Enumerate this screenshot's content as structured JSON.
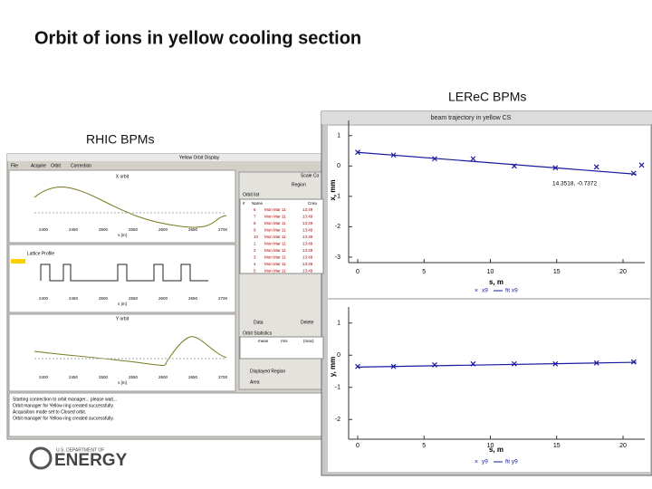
{
  "slide": {
    "title": "Orbit of ions in yellow cooling section",
    "lerec_label": "LEReC BPMs",
    "rhic_label": "RHIC BPMs"
  },
  "rhic_window": {
    "title": "Yellow Orbit Display",
    "menu": [
      "File",
      "Acquire",
      "Orbit",
      "Correction"
    ],
    "plot_titles": [
      "X orbit",
      "Lattice Profile",
      "Y orbit"
    ],
    "s_ticks": [
      "2400",
      "2450",
      "2500",
      "2550",
      "2600",
      "2650",
      "2700"
    ],
    "s_label": "s [m]",
    "side_labels": [
      "Scale Co",
      "Region",
      "Orbit list",
      "Data",
      "Delete",
      "Orbit Statistics",
      "Displayed Region",
      "Area"
    ],
    "orbit_list_headers": [
      "#",
      "Name",
      "Crea"
    ],
    "orbit_list_rows": [
      [
        "6",
        "Mon Mar 11",
        "13:49"
      ],
      [
        "7",
        "Mon Mar 11",
        "13:49"
      ],
      [
        "8",
        "Mon Mar 11",
        "13:49"
      ],
      [
        "9",
        "Mon Mar 11",
        "13:49"
      ],
      [
        "10",
        "Mon Mar 11",
        "13:49"
      ],
      [
        "1",
        "Mon Mar 11",
        "13:49"
      ],
      [
        "2",
        "Mon Mar 11",
        "13:49"
      ],
      [
        "3",
        "Mon Mar 11",
        "13:49"
      ],
      [
        "4",
        "Mon Mar 11",
        "13:49"
      ],
      [
        "5",
        "Mon Mar 11",
        "13:49"
      ]
    ],
    "stats_headers": [
      "mean",
      "rms",
      "(max)"
    ],
    "log": [
      "Starting connection to orbit manager... please wait...",
      "Orbit manager for Yellow ring created successfully.",
      "Acquisition mode set to Closed orbit.",
      "Orbit manager for Yellow ring created successfully."
    ]
  },
  "lerec_window": {
    "title": "beam trajectory in yellow CS",
    "plots": [
      {
        "type": "scatter",
        "y_label": "x, mm",
        "x_label": "s, m",
        "annotation": "14.3518, -0.7372",
        "xlim": [
          0,
          21.5
        ],
        "xticks": [
          0,
          5,
          10,
          15,
          20
        ],
        "ylim": [
          -3.3,
          1.5
        ],
        "yticks": [
          1,
          0,
          -1,
          -2,
          -3
        ],
        "series": [
          {
            "name": "x9",
            "color": "#1a1aa0",
            "x": [
              0,
              2.7,
              5.8,
              8.7,
              11.8,
              14.9,
              18.0,
              20.8,
              21.4
            ],
            "values": [
              0.45,
              0.36,
              0.24,
              0.24,
              0,
              -0.06,
              -0.03,
              -0.24,
              0.03
            ]
          },
          {
            "name": "fit x9",
            "color": "#1a1aa0",
            "x": [
              0,
              21
            ],
            "values": [
              0.45,
              -0.27
            ]
          }
        ]
      },
      {
        "type": "scatter",
        "y_label": "y, mm",
        "x_label": "s, m",
        "xlim": [
          0,
          21.5
        ],
        "xticks": [
          0,
          5,
          10,
          15,
          20
        ],
        "ylim": [
          -2.5,
          1.5
        ],
        "yticks": [
          1,
          0,
          -1,
          -2
        ],
        "series": [
          {
            "name": "y9",
            "color": "#1a1aa0",
            "x": [
              0,
              2.7,
              5.8,
              8.7,
              11.8,
              14.9,
              18.0,
              20.8
            ],
            "values": [
              -0.35,
              -0.35,
              -0.3,
              -0.27,
              -0.27,
              -0.27,
              -0.24,
              -0.21
            ]
          },
          {
            "name": "fit y9",
            "color": "#1a1aa0",
            "x": [
              0,
              21
            ],
            "values": [
              -0.37,
              -0.22
            ]
          }
        ]
      }
    ]
  },
  "logo": {
    "top": "U.S. DEPARTMENT OF",
    "main": "ENERGY"
  }
}
